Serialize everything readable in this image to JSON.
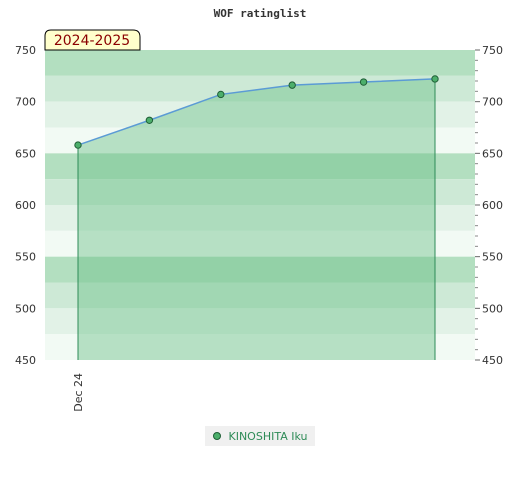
{
  "chart_data": {
    "type": "area",
    "title": "WOF ratinglist",
    "badge": "2024-2025",
    "x_tick_label": "Dec 24",
    "ylim": [
      450,
      750
    ],
    "y_ticks": [
      450,
      500,
      550,
      600,
      650,
      700,
      750
    ],
    "series": [
      {
        "name": "KINOSHITA Iku",
        "values": [
          658,
          682,
          707,
          716,
          719,
          722
        ]
      }
    ],
    "grid": true,
    "legend": "bottom-center",
    "colors": {
      "line": "#5b9bd5",
      "fill": "#6cc08a",
      "band_dark": "#b3dfc0",
      "band_light": "#e6f4ea",
      "marker": "#4caf6b"
    }
  }
}
